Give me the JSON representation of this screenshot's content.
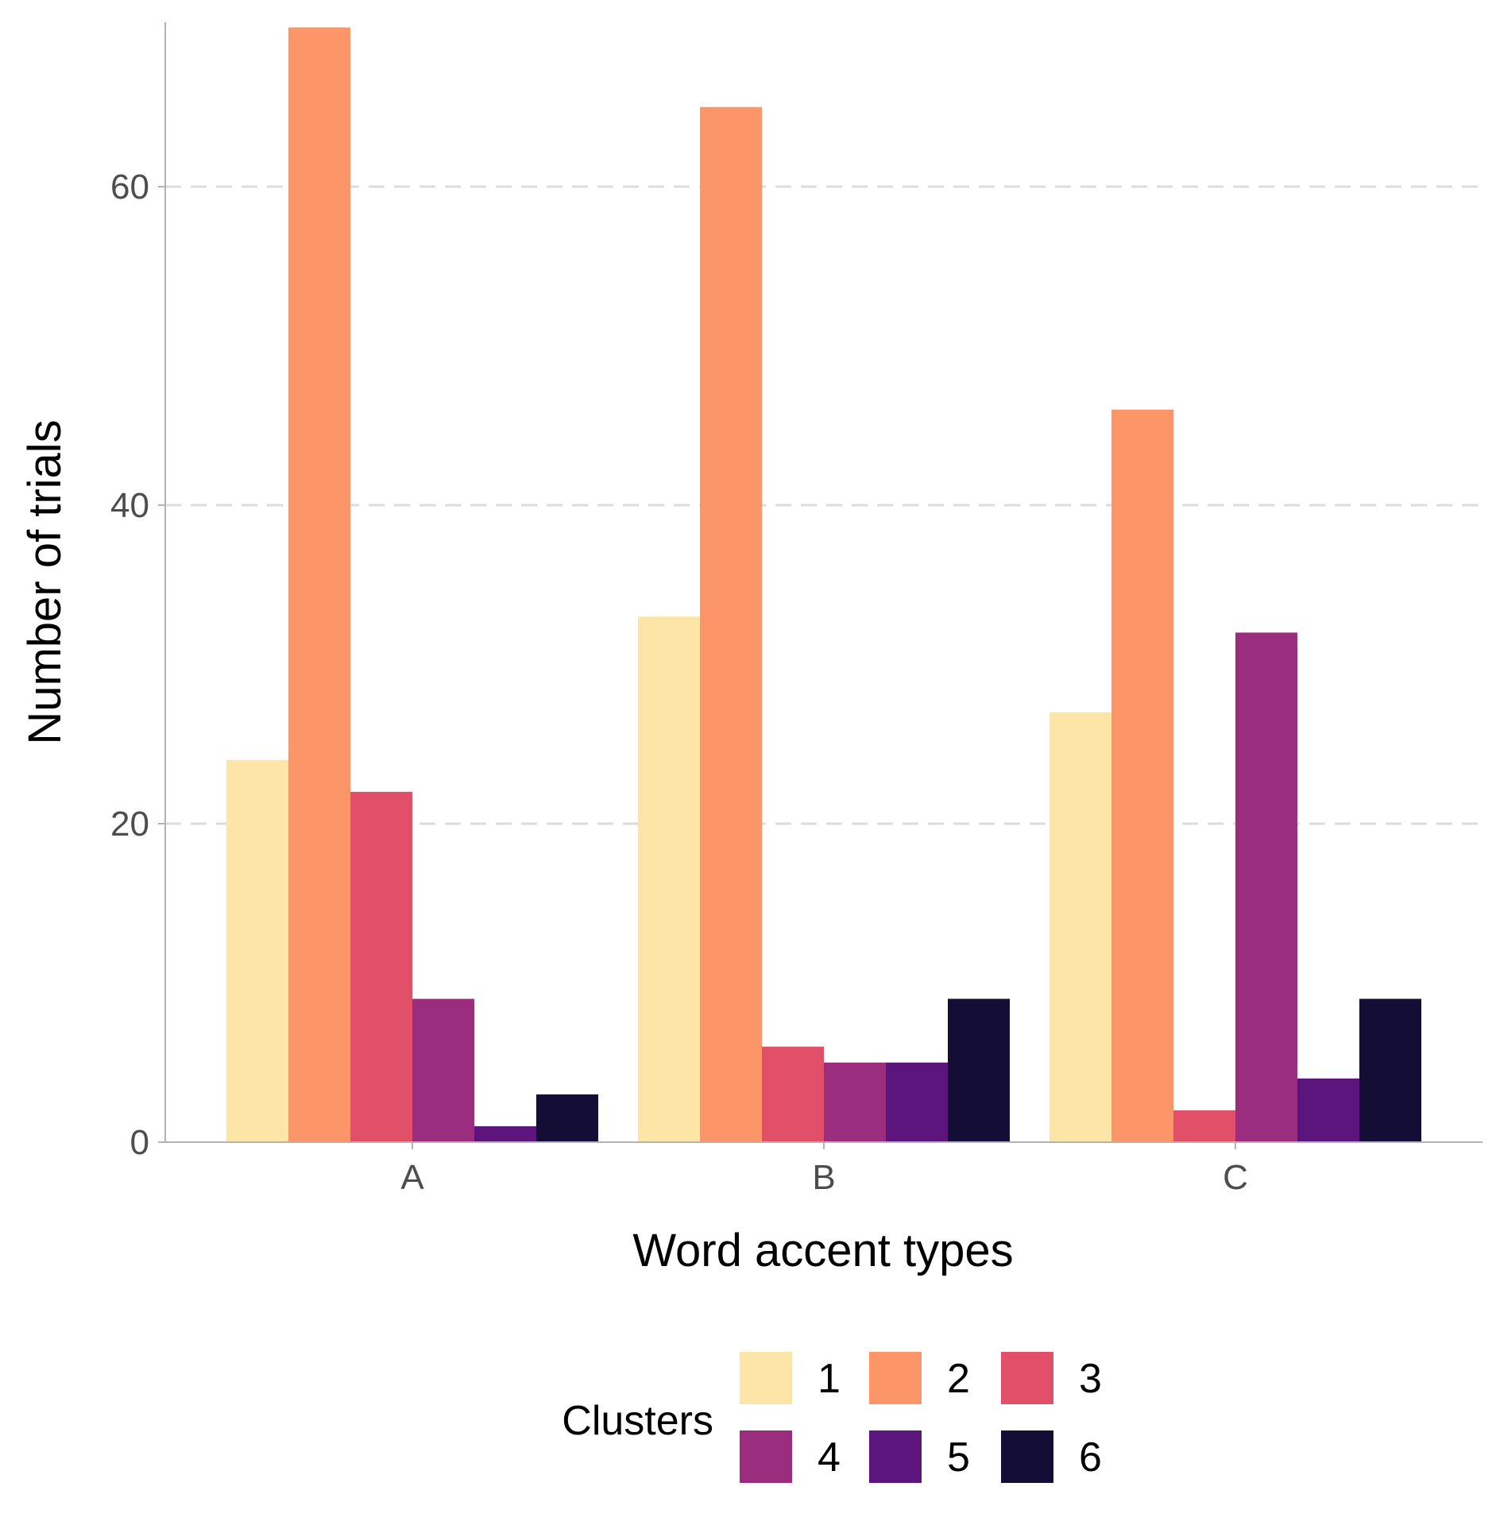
{
  "chart_data": {
    "type": "bar",
    "categories": [
      "A",
      "B",
      "C"
    ],
    "series": [
      {
        "name": "1",
        "values": [
          24,
          33,
          27
        ],
        "color": "#fde5a7"
      },
      {
        "name": "2",
        "values": [
          70,
          65,
          46
        ],
        "color": "#fc9669"
      },
      {
        "name": "3",
        "values": [
          22,
          6,
          2
        ],
        "color": "#e14f68"
      },
      {
        "name": "4",
        "values": [
          9,
          5,
          32
        ],
        "color": "#9b2d7f"
      },
      {
        "name": "5",
        "values": [
          1,
          5,
          4
        ],
        "color": "#5b157d"
      },
      {
        "name": "6",
        "values": [
          3,
          9,
          9
        ],
        "color": "#140e37"
      }
    ],
    "xlabel": "Word accent types",
    "ylabel": "Number of trials",
    "ylim": [
      0,
      70
    ],
    "yticks": [
      0,
      20,
      40,
      60
    ],
    "grid": "horizontal dashed at major y ticks",
    "legend": {
      "title": "Clusters",
      "position": "bottom"
    }
  }
}
